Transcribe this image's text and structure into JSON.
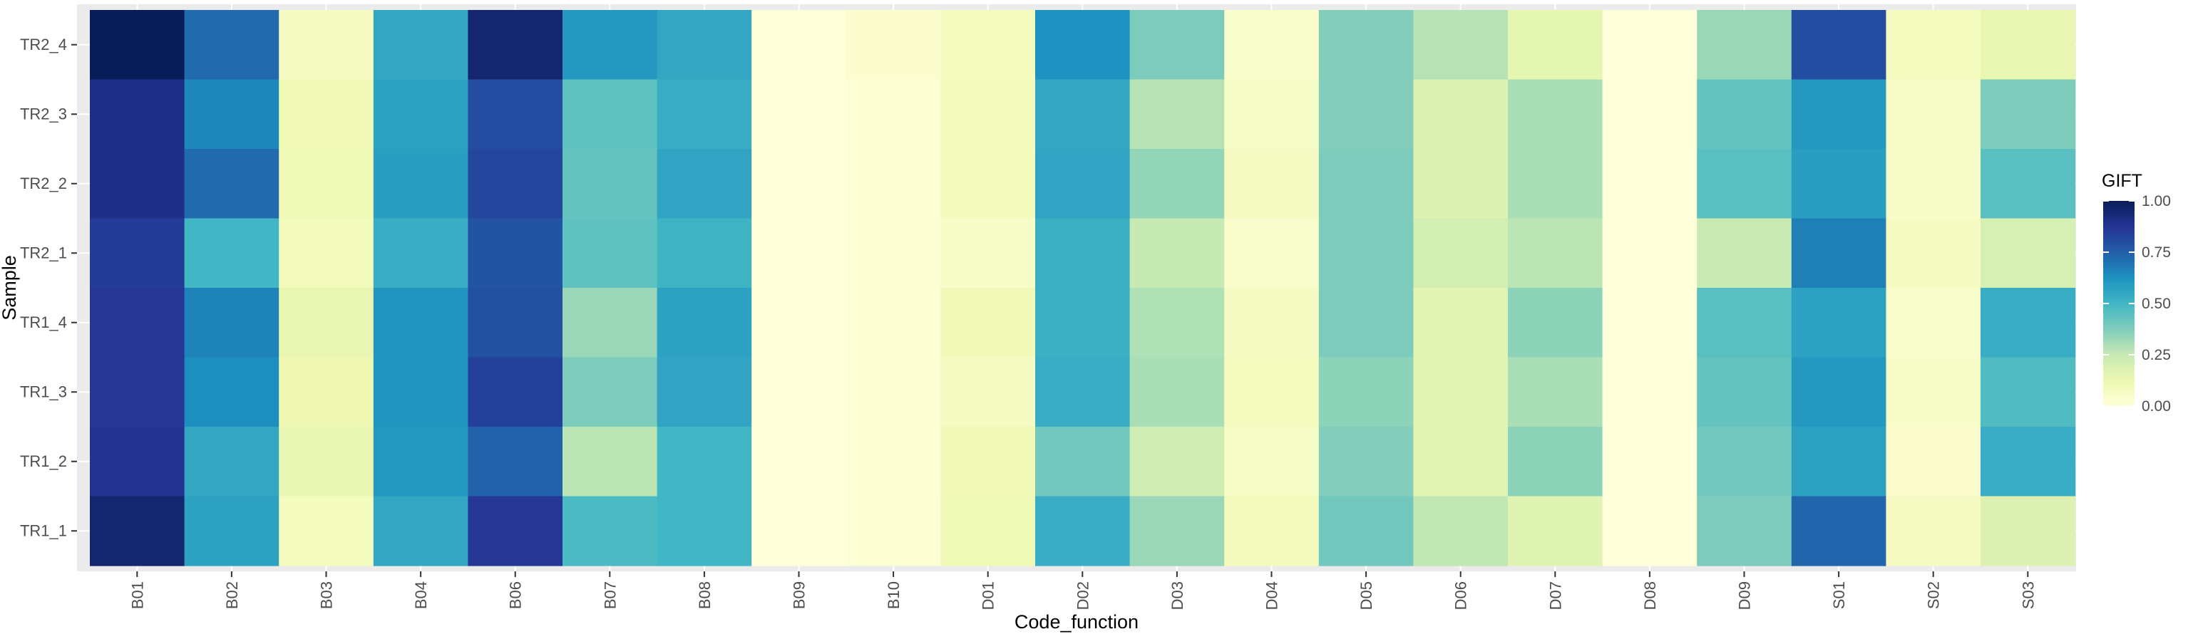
{
  "chart_data": {
    "type": "heatmap",
    "title": "",
    "xlabel": "Code_function",
    "ylabel": "Sample",
    "x_categories": [
      "B01",
      "B02",
      "B03",
      "B04",
      "B06",
      "B07",
      "B08",
      "B09",
      "B10",
      "D01",
      "D02",
      "D03",
      "D04",
      "D05",
      "D06",
      "D07",
      "D08",
      "D09",
      "S01",
      "S02",
      "S03"
    ],
    "y_categories": [
      "TR2_4",
      "TR2_3",
      "TR2_2",
      "TR2_1",
      "TR1_4",
      "TR1_3",
      "TR1_2",
      "TR1_1"
    ],
    "values": [
      [
        1.0,
        0.72,
        0.07,
        0.55,
        0.95,
        0.6,
        0.55,
        0.0,
        0.03,
        0.08,
        0.62,
        0.38,
        0.04,
        0.37,
        0.28,
        0.15,
        0.0,
        0.33,
        0.8,
        0.08,
        0.14
      ],
      [
        0.9,
        0.65,
        0.1,
        0.57,
        0.8,
        0.44,
        0.53,
        0.0,
        0.02,
        0.09,
        0.55,
        0.28,
        0.06,
        0.37,
        0.18,
        0.3,
        0.0,
        0.43,
        0.6,
        0.05,
        0.38
      ],
      [
        0.9,
        0.72,
        0.11,
        0.58,
        0.82,
        0.43,
        0.56,
        0.0,
        0.02,
        0.09,
        0.56,
        0.34,
        0.07,
        0.38,
        0.18,
        0.3,
        0.0,
        0.45,
        0.58,
        0.05,
        0.45
      ],
      [
        0.85,
        0.5,
        0.09,
        0.53,
        0.78,
        0.44,
        0.51,
        0.0,
        0.02,
        0.05,
        0.52,
        0.25,
        0.04,
        0.38,
        0.21,
        0.27,
        0.0,
        0.24,
        0.67,
        0.07,
        0.2
      ],
      [
        0.87,
        0.66,
        0.14,
        0.61,
        0.79,
        0.33,
        0.57,
        0.0,
        0.02,
        0.1,
        0.52,
        0.29,
        0.07,
        0.38,
        0.16,
        0.35,
        0.0,
        0.45,
        0.57,
        0.04,
        0.53
      ],
      [
        0.87,
        0.63,
        0.12,
        0.61,
        0.84,
        0.38,
        0.56,
        0.0,
        0.02,
        0.07,
        0.53,
        0.3,
        0.08,
        0.35,
        0.16,
        0.3,
        0.0,
        0.43,
        0.6,
        0.05,
        0.47
      ],
      [
        0.88,
        0.55,
        0.14,
        0.6,
        0.74,
        0.27,
        0.5,
        0.0,
        0.02,
        0.1,
        0.4,
        0.22,
        0.06,
        0.37,
        0.16,
        0.35,
        0.0,
        0.4,
        0.57,
        0.03,
        0.53
      ],
      [
        0.95,
        0.57,
        0.08,
        0.55,
        0.87,
        0.48,
        0.5,
        0.0,
        0.02,
        0.11,
        0.53,
        0.33,
        0.09,
        0.4,
        0.26,
        0.17,
        0.0,
        0.38,
        0.73,
        0.07,
        0.18
      ]
    ],
    "legend": {
      "title": "GIFT",
      "ticks": [
        "0.00",
        "0.25",
        "0.50",
        "0.75",
        "1.00"
      ],
      "tick_values": [
        0,
        0.25,
        0.5,
        0.75,
        1
      ],
      "placement": "right"
    },
    "scale": {
      "range": [
        0,
        1
      ],
      "palette": "YlGnBu",
      "stops": [
        "#ffffd9",
        "#edf8b1",
        "#c7e9b4",
        "#7fcdbb",
        "#41b6c4",
        "#1d91c0",
        "#225ea8",
        "#253494",
        "#081d58"
      ]
    },
    "colors": {
      "panel_background": "#ebebeb",
      "grid": "#ffffff"
    },
    "grid": true
  }
}
